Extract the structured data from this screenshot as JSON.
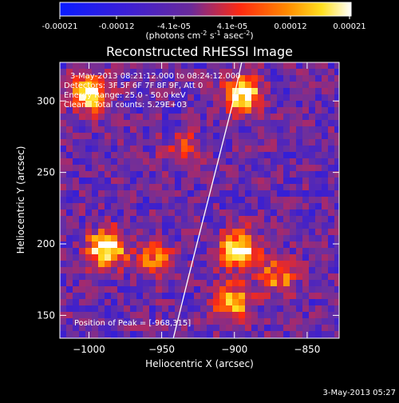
{
  "colorbar": {
    "ticks": [
      "-0.00021",
      "-0.00012",
      "-4.1e-05",
      "4.1e-05",
      "0.00012",
      "0.00021"
    ],
    "units_prefix": "(photons cm",
    "units_exp1": "-2",
    "units_mid": " s",
    "units_exp2": "-1",
    "units_mid2": " asec",
    "units_exp3": "-2",
    "units_suffix": ")",
    "range": [
      -0.00021,
      0.00021
    ],
    "colors": [
      "#0a1cff",
      "#3b1fd0",
      "#6a2fa0",
      "#a82a6a",
      "#ff2a10",
      "#ff8a00",
      "#ffe020",
      "#ffffff"
    ]
  },
  "header": {
    "line1": "3-May-2013 08:21:12.000 to 08:24:12.000",
    "line2": "Detectors: 3F 5F 6F 7F 8F 9F, Att 0",
    "line3": "Energy Range: 25.0 - 50.0 keV",
    "line4_left": "Clean",
    "line4_right": "Total counts: 5.29E+03"
  },
  "peak_label": "Position of Peak = [-968,315]",
  "footer_timestamp": "3-May-2013 05:27",
  "chart_data": {
    "type": "heatmap",
    "title": "Reconstructed RHESSI Image",
    "xlabel": "Heliocentric X (arcsec)",
    "ylabel": "Heliocentric Y (arcsec)",
    "xlim": [
      -1020,
      -828
    ],
    "ylim": [
      134,
      327
    ],
    "xticks": [
      -1000,
      -950,
      -900,
      -850
    ],
    "yticks": [
      150,
      200,
      250,
      300
    ],
    "xtick_labels": [
      "−1000",
      "−950",
      "−900",
      "−850"
    ],
    "ytick_labels": [
      "150",
      "200",
      "250",
      "300"
    ],
    "peak": [
      -968,
      315
    ],
    "sources": [
      {
        "x": -895,
        "y": 305,
        "strength": 0.9
      },
      {
        "x": -1000,
        "y": 305,
        "strength": 0.7
      },
      {
        "x": -988,
        "y": 196,
        "strength": 0.85
      },
      {
        "x": -897,
        "y": 196,
        "strength": 0.85
      },
      {
        "x": -902,
        "y": 160,
        "strength": 0.6
      },
      {
        "x": -870,
        "y": 178,
        "strength": 0.45
      },
      {
        "x": -955,
        "y": 190,
        "strength": 0.4
      },
      {
        "x": -935,
        "y": 265,
        "strength": 0.3
      }
    ],
    "limb_points": [
      [
        -942,
        134
      ],
      [
        -932,
        175
      ],
      [
        -922,
        215
      ],
      [
        -912,
        255
      ],
      [
        -902,
        295
      ],
      [
        -895,
        327
      ]
    ]
  }
}
